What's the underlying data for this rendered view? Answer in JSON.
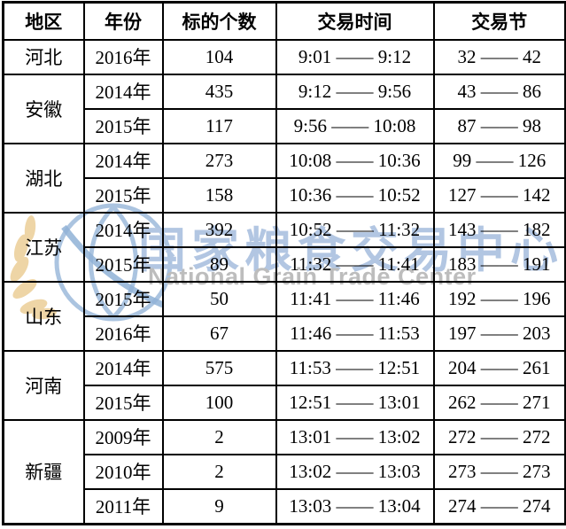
{
  "watermark": {
    "cn": "国家粮食交易中心",
    "en": "National Grain Trade Center",
    "logo_icon": "globe-with-wheat",
    "colors": {
      "cn_text": "#b2c6e2",
      "en_text": "#bdbdbd",
      "globe_line": "#a3bedd",
      "wheat": "#eed3a2"
    }
  },
  "table": {
    "columns": [
      "地区",
      "年份",
      "标的个数",
      "交易时间",
      "交易节"
    ],
    "groups": [
      {
        "region": "河北",
        "rows": [
          {
            "year": "2016年",
            "count": "104",
            "time": "9:01 —— 9:12",
            "session": "32 —— 42"
          }
        ]
      },
      {
        "region": "安徽",
        "rows": [
          {
            "year": "2014年",
            "count": "435",
            "time": "9:12 —— 9:56",
            "session": "43 —— 86"
          },
          {
            "year": "2015年",
            "count": "117",
            "time": "9:56 —— 10:08",
            "session": "87 —— 98"
          }
        ]
      },
      {
        "region": "湖北",
        "rows": [
          {
            "year": "2014年",
            "count": "273",
            "time": "10:08 —— 10:36",
            "session": "99 —— 126"
          },
          {
            "year": "2015年",
            "count": "158",
            "time": "10:36 —— 10:52",
            "session": "127 —— 142"
          }
        ]
      },
      {
        "region": "江苏",
        "rows": [
          {
            "year": "2014年",
            "count": "392",
            "time": "10:52 —— 11:32",
            "session": "143 —— 182"
          },
          {
            "year": "2015年",
            "count": "89",
            "time": "11:32 —— 11:41",
            "session": "183 —— 191"
          }
        ]
      },
      {
        "region": "山东",
        "rows": [
          {
            "year": "2015年",
            "count": "50",
            "time": "11:41 —— 11:46",
            "session": "192 —— 196"
          },
          {
            "year": "2016年",
            "count": "67",
            "time": "11:46 —— 11:53",
            "session": "197 —— 203"
          }
        ]
      },
      {
        "region": "河南",
        "rows": [
          {
            "year": "2014年",
            "count": "575",
            "time": "11:53 —— 12:51",
            "session": "204 —— 261"
          },
          {
            "year": "2015年",
            "count": "100",
            "time": "12:51 —— 13:01",
            "session": "262 —— 271"
          }
        ]
      },
      {
        "region": "新疆",
        "rows": [
          {
            "year": "2009年",
            "count": "2",
            "time": "13:01 —— 13:02",
            "session": "272 —— 272"
          },
          {
            "year": "2010年",
            "count": "2",
            "time": "13:02 —— 13:03",
            "session": "273 —— 273"
          },
          {
            "year": "2011年",
            "count": "9",
            "time": "13:03 —— 13:04",
            "session": "274 —— 274"
          }
        ]
      }
    ]
  }
}
